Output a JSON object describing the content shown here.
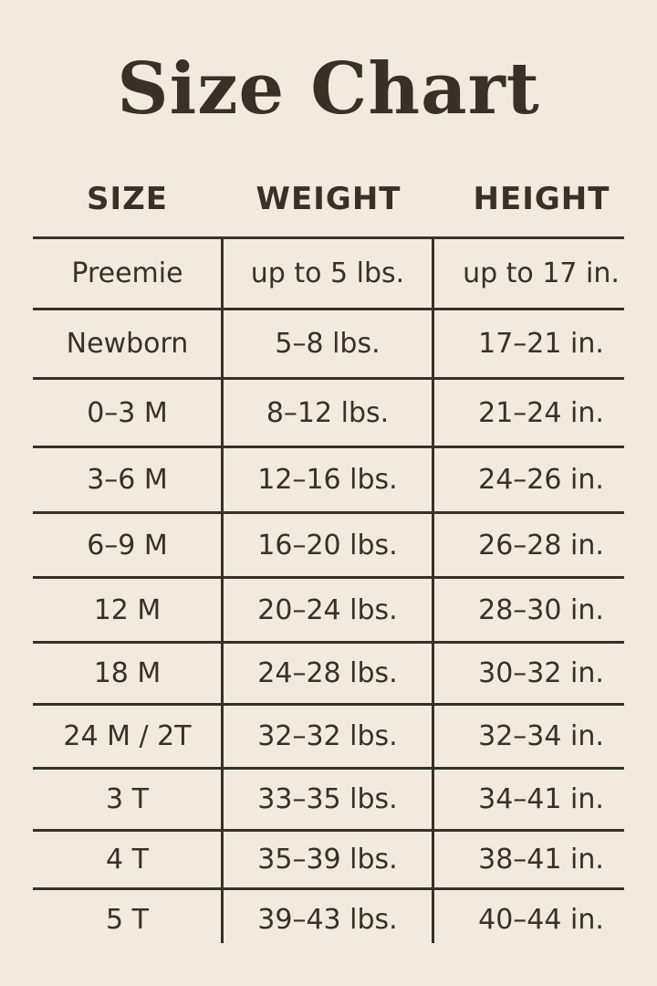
{
  "title": "Size Chart",
  "colors": {
    "background": "#f2eadf",
    "text": "#3b2f27"
  },
  "columns": [
    "SIZE",
    "WEIGHT",
    "HEIGHT"
  ],
  "rows": [
    {
      "size": "Preemie",
      "weight": "up to 5 lbs.",
      "height": "up to 17 in."
    },
    {
      "size": "Newborn",
      "weight": "5–8 lbs.",
      "height": "17–21 in."
    },
    {
      "size": "0–3 M",
      "weight": "8–12 lbs.",
      "height": "21–24 in."
    },
    {
      "size": "3–6 M",
      "weight": "12–16 lbs.",
      "height": "24–26 in."
    },
    {
      "size": "6–9 M",
      "weight": "16–20 lbs.",
      "height": "26–28 in."
    },
    {
      "size": "12 M",
      "weight": "20–24 lbs.",
      "height": "28–30 in."
    },
    {
      "size": "18 M",
      "weight": "24–28 lbs.",
      "height": "30–32 in."
    },
    {
      "size": "24 M / 2T",
      "weight": "32–32 lbs.",
      "height": "32–34 in."
    },
    {
      "size": "3 T",
      "weight": "33–35 lbs.",
      "height": "34–41 in."
    },
    {
      "size": "4 T",
      "weight": "35–39 lbs.",
      "height": "38–41 in."
    },
    {
      "size": "5 T",
      "weight": "39–43 lbs.",
      "height": "40–44 in."
    }
  ]
}
